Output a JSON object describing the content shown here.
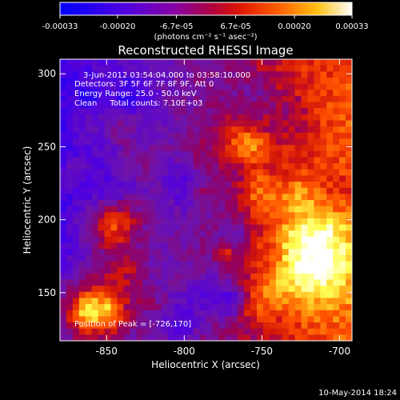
{
  "colorbar": {
    "ticks": [
      "-0.00033",
      "-0.00020",
      "-6.7e-05",
      "6.7e-05",
      "0.00020",
      "0.00033"
    ],
    "tick_values": [
      -0.00033,
      -0.0002,
      -6.7e-05,
      6.7e-05,
      0.0002,
      0.00033
    ],
    "range": [
      -0.00033,
      0.00033
    ],
    "unit_label": "(photons cm⁻² s⁻¹ asec⁻²)",
    "colors": [
      "#0000ff",
      "#6a00d0",
      "#9a008a",
      "#c8102a",
      "#ff3000",
      "#ff9000",
      "#ffff30",
      "#ffffff"
    ]
  },
  "plot": {
    "title": "Reconstructed RHESSI Image",
    "annotation_lines": [
      "3-Jun-2012 03:54:04.000 to 03:58:10.000",
      "Detectors: 3F 5F 6F 7F 8F 9F, Att 0",
      "Energy Range: 25.0 - 50.0 keV",
      "Clean     Total counts: 7.10E+03"
    ],
    "peak_label": "Position of Peak = [-726,170]",
    "footer": "10-May-2014 18:24"
  },
  "chart_data": {
    "type": "heatmap",
    "title": "Reconstructed RHESSI Image",
    "xlabel": "Heliocentric X (arcsec)",
    "ylabel": "Heliocentric Y (arcsec)",
    "xlim": [
      -880,
      -692
    ],
    "ylim": [
      117,
      310
    ],
    "xticks": [
      -850,
      -800,
      -750,
      -700
    ],
    "yticks": [
      150,
      200,
      250,
      300
    ],
    "xtick_labels": [
      "-850",
      "-800",
      "-750",
      "-700"
    ],
    "ytick_labels": [
      "150",
      "200",
      "250",
      "300"
    ],
    "colorbar_range": [
      -0.00033,
      0.00033
    ],
    "peak_position": [
      -726,
      170
    ],
    "grid": false
  }
}
